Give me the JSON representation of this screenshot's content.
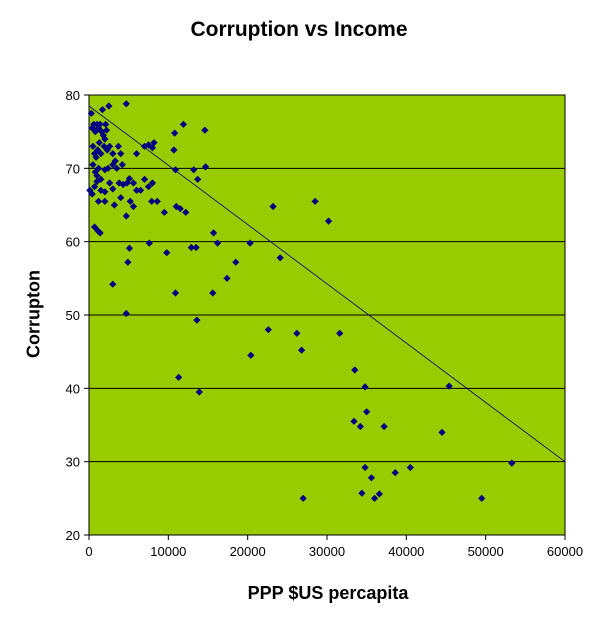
{
  "chart_data": {
    "type": "scatter",
    "title": "Corruption vs Income",
    "xlabel": "PPP $US percapita",
    "ylabel": "Corrupton",
    "xlim": [
      0,
      60000
    ],
    "ylim": [
      20,
      80
    ],
    "xticks": [
      0,
      10000,
      20000,
      30000,
      40000,
      50000,
      60000
    ],
    "yticks": [
      20,
      30,
      40,
      50,
      60,
      70,
      80
    ],
    "grid": "horizontal",
    "legend": "none",
    "colors": {
      "plot_background": "#99cc00",
      "marker": "#000080",
      "trendline": "#000080",
      "gridline": "#000000"
    },
    "trendline": {
      "x": [
        0,
        60000
      ],
      "y": [
        78.5,
        30
      ]
    },
    "points": [
      [
        300,
        77.5
      ],
      [
        400,
        75.5
      ],
      [
        600,
        76
      ],
      [
        800,
        75
      ],
      [
        1000,
        76
      ],
      [
        1200,
        75.5
      ],
      [
        1400,
        76
      ],
      [
        1600,
        75
      ],
      [
        1800,
        74.5
      ],
      [
        2000,
        74
      ],
      [
        2200,
        75.2
      ],
      [
        2500,
        78.5
      ],
      [
        1700,
        78
      ],
      [
        2100,
        76
      ],
      [
        500,
        73
      ],
      [
        700,
        72
      ],
      [
        900,
        71.5
      ],
      [
        1100,
        72.5
      ],
      [
        1300,
        73.5
      ],
      [
        1500,
        72
      ],
      [
        1900,
        73
      ],
      [
        2300,
        72.5
      ],
      [
        2600,
        73
      ],
      [
        3000,
        72
      ],
      [
        3300,
        71
      ],
      [
        3700,
        73
      ],
      [
        4000,
        72
      ],
      [
        500,
        70.5
      ],
      [
        800,
        69.5
      ],
      [
        1000,
        69
      ],
      [
        1200,
        70
      ],
      [
        1500,
        68.5
      ],
      [
        2000,
        69.8
      ],
      [
        2400,
        70
      ],
      [
        3000,
        70.5
      ],
      [
        3500,
        70
      ],
      [
        4200,
        70.5
      ],
      [
        100,
        67
      ],
      [
        400,
        66.5
      ],
      [
        700,
        67.5
      ],
      [
        1000,
        68.2
      ],
      [
        1500,
        67
      ],
      [
        2000,
        66.8
      ],
      [
        2600,
        68
      ],
      [
        3000,
        67.2
      ],
      [
        3800,
        68
      ],
      [
        4300,
        67.8
      ],
      [
        4800,
        68
      ],
      [
        5100,
        68.6
      ],
      [
        5600,
        68
      ],
      [
        6000,
        67
      ],
      [
        6500,
        67
      ],
      [
        7000,
        68.5
      ],
      [
        7500,
        67.5
      ],
      [
        8000,
        68
      ],
      [
        1200,
        65.5
      ],
      [
        2000,
        65.5
      ],
      [
        3200,
        65
      ],
      [
        4000,
        66
      ],
      [
        5200,
        65.5
      ],
      [
        5600,
        64.8
      ],
      [
        7900,
        65.5
      ],
      [
        8600,
        65.5
      ],
      [
        9500,
        64
      ],
      [
        700,
        62
      ],
      [
        1100,
        61.5
      ],
      [
        1400,
        61.2
      ],
      [
        4700,
        63.5
      ],
      [
        4700,
        78.8
      ],
      [
        7500,
        73.2
      ],
      [
        8000,
        72.8
      ],
      [
        7000,
        73
      ],
      [
        8200,
        73.5
      ],
      [
        6000,
        72
      ],
      [
        10800,
        74.8
      ],
      [
        10700,
        72.5
      ],
      [
        11900,
        76
      ],
      [
        10900,
        69.8
      ],
      [
        11000,
        64.8
      ],
      [
        11500,
        64.5
      ],
      [
        12200,
        64
      ],
      [
        14600,
        75.2
      ],
      [
        13200,
        69.8
      ],
      [
        14700,
        70.2
      ],
      [
        13700,
        68.5
      ],
      [
        12900,
        59.2
      ],
      [
        13500,
        59.2
      ],
      [
        15700,
        61.2
      ],
      [
        16200,
        59.8
      ],
      [
        7600,
        59.8
      ],
      [
        9800,
        58.5
      ],
      [
        5100,
        59.1
      ],
      [
        4900,
        57.2
      ],
      [
        3000,
        54.2
      ],
      [
        10900,
        53
      ],
      [
        15600,
        53
      ],
      [
        17400,
        55
      ],
      [
        18500,
        57.2
      ],
      [
        20300,
        59.8
      ],
      [
        24100,
        57.8
      ],
      [
        23200,
        64.8
      ],
      [
        28500,
        65.5
      ],
      [
        30200,
        62.8
      ],
      [
        4700,
        50.2
      ],
      [
        13600,
        49.3
      ],
      [
        22600,
        48
      ],
      [
        26200,
        47.5
      ],
      [
        26800,
        45.2
      ],
      [
        31600,
        47.5
      ],
      [
        20400,
        44.5
      ],
      [
        11300,
        41.5
      ],
      [
        13900,
        39.5
      ],
      [
        33500,
        42.5
      ],
      [
        34800,
        40.2
      ],
      [
        45400,
        40.3
      ],
      [
        33400,
        35.5
      ],
      [
        34200,
        34.8
      ],
      [
        35000,
        36.8
      ],
      [
        37200,
        34.8
      ],
      [
        44500,
        34
      ],
      [
        34800,
        29.2
      ],
      [
        35600,
        27.8
      ],
      [
        38600,
        28.5
      ],
      [
        40500,
        29.2
      ],
      [
        53300,
        29.8
      ],
      [
        27000,
        25
      ],
      [
        34400,
        25.7
      ],
      [
        36000,
        25
      ],
      [
        36600,
        25.6
      ],
      [
        49500,
        25
      ]
    ]
  }
}
